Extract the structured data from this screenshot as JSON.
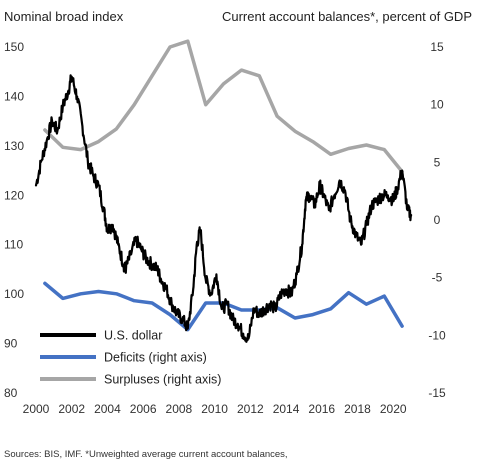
{
  "header": {
    "left_axis_title": "Nominal broad index",
    "right_axis_title": "Current account balances*, percent of GDP"
  },
  "source_note": "Sources:  BIS, IMF. *Unweighted average current account  balances,",
  "chart_data": {
    "type": "line",
    "left_axis": {
      "label": "Nominal broad index",
      "range": [
        80,
        150
      ],
      "ticks": [
        80,
        90,
        100,
        110,
        120,
        130,
        140,
        150
      ]
    },
    "right_axis": {
      "label": "Current account balances*, percent of GDP",
      "range": [
        -15,
        15
      ],
      "ticks": [
        -15,
        -10,
        -5,
        0,
        5,
        10,
        15
      ]
    },
    "x_axis": {
      "range": [
        2000,
        2021.5
      ],
      "ticks": [
        2000,
        2002,
        2004,
        2006,
        2008,
        2010,
        2012,
        2014,
        2016,
        2018,
        2020
      ]
    },
    "legend": {
      "placement": "bottom-left",
      "entries": [
        "U.S. dollar",
        "Deficits (right axis)",
        "Surpluses (right axis)"
      ]
    },
    "grid": false,
    "series": [
      {
        "name": "U.S. dollar",
        "axis": "left",
        "color": "#000000",
        "x": [
          2000.0,
          2000.3,
          2000.6,
          2000.9,
          2001.2,
          2001.5,
          2001.8,
          2002.0,
          2002.3,
          2002.6,
          2002.9,
          2003.2,
          2003.5,
          2003.8,
          2004.0,
          2004.3,
          2004.6,
          2004.9,
          2005.0,
          2005.3,
          2005.6,
          2005.9,
          2006.2,
          2006.5,
          2006.8,
          2007.0,
          2007.3,
          2007.6,
          2007.9,
          2008.2,
          2008.5,
          2008.8,
          2009.0,
          2009.2,
          2009.5,
          2009.8,
          2010.1,
          2010.4,
          2010.7,
          2011.0,
          2011.3,
          2011.6,
          2011.9,
          2012.2,
          2012.5,
          2012.8,
          2013.1,
          2013.4,
          2013.7,
          2014.0,
          2014.3,
          2014.6,
          2014.9,
          2015.1,
          2015.3,
          2015.6,
          2015.9,
          2016.1,
          2016.4,
          2016.7,
          2017.0,
          2017.3,
          2017.6,
          2017.9,
          2018.2,
          2018.5,
          2018.8,
          2019.1,
          2019.4,
          2019.7,
          2020.0,
          2020.2,
          2020.5,
          2020.8,
          2021.0
        ],
        "y": [
          122,
          127,
          131,
          135,
          133,
          138,
          141,
          144,
          140,
          134,
          127,
          124,
          122,
          117,
          113,
          114,
          110,
          106,
          105,
          108,
          111,
          109,
          107,
          106,
          105,
          103,
          101,
          98,
          96,
          95,
          93,
          101,
          110,
          113,
          103,
          100,
          104,
          97,
          98,
          95,
          94,
          92,
          91,
          97,
          96,
          97,
          98,
          97,
          100,
          101,
          100,
          104,
          110,
          119,
          120,
          118,
          122,
          120,
          117,
          120,
          123,
          121,
          115,
          112,
          110,
          114,
          118,
          119,
          120,
          120,
          119,
          121,
          125,
          117,
          116
        ]
      },
      {
        "name": "Deficits (right axis)",
        "axis": "right",
        "color": "#4472c4",
        "x": [
          2000.5,
          2001.5,
          2002.5,
          2003.5,
          2004.5,
          2005.5,
          2006.5,
          2007.5,
          2008.5,
          2009.5,
          2010.5,
          2011.5,
          2012.5,
          2013.5,
          2014.5,
          2015.5,
          2016.5,
          2017.5,
          2018.5,
          2019.5,
          2020.5
        ],
        "y": [
          -5.5,
          -6.8,
          -6.4,
          -6.2,
          -6.4,
          -7.0,
          -7.2,
          -8.2,
          -9.5,
          -7.2,
          -7.2,
          -7.8,
          -7.8,
          -7.6,
          -8.5,
          -8.2,
          -7.7,
          -6.3,
          -7.3,
          -6.6,
          -9.2
        ]
      },
      {
        "name": "Surpluses (right axis)",
        "axis": "right",
        "color": "#a6a6a6",
        "x": [
          2000.5,
          2001.5,
          2002.5,
          2003.5,
          2004.5,
          2005.5,
          2006.5,
          2007.5,
          2008.5,
          2009.5,
          2010.5,
          2011.5,
          2012.5,
          2013.5,
          2014.5,
          2015.5,
          2016.5,
          2017.5,
          2018.5,
          2019.5,
          2020.5
        ],
        "y": [
          7.8,
          6.3,
          6.1,
          6.8,
          7.9,
          10.0,
          12.5,
          15.0,
          15.5,
          10.0,
          11.8,
          13.0,
          12.5,
          9.0,
          7.7,
          6.8,
          5.7,
          6.2,
          6.5,
          6.1,
          4.2
        ]
      }
    ]
  }
}
